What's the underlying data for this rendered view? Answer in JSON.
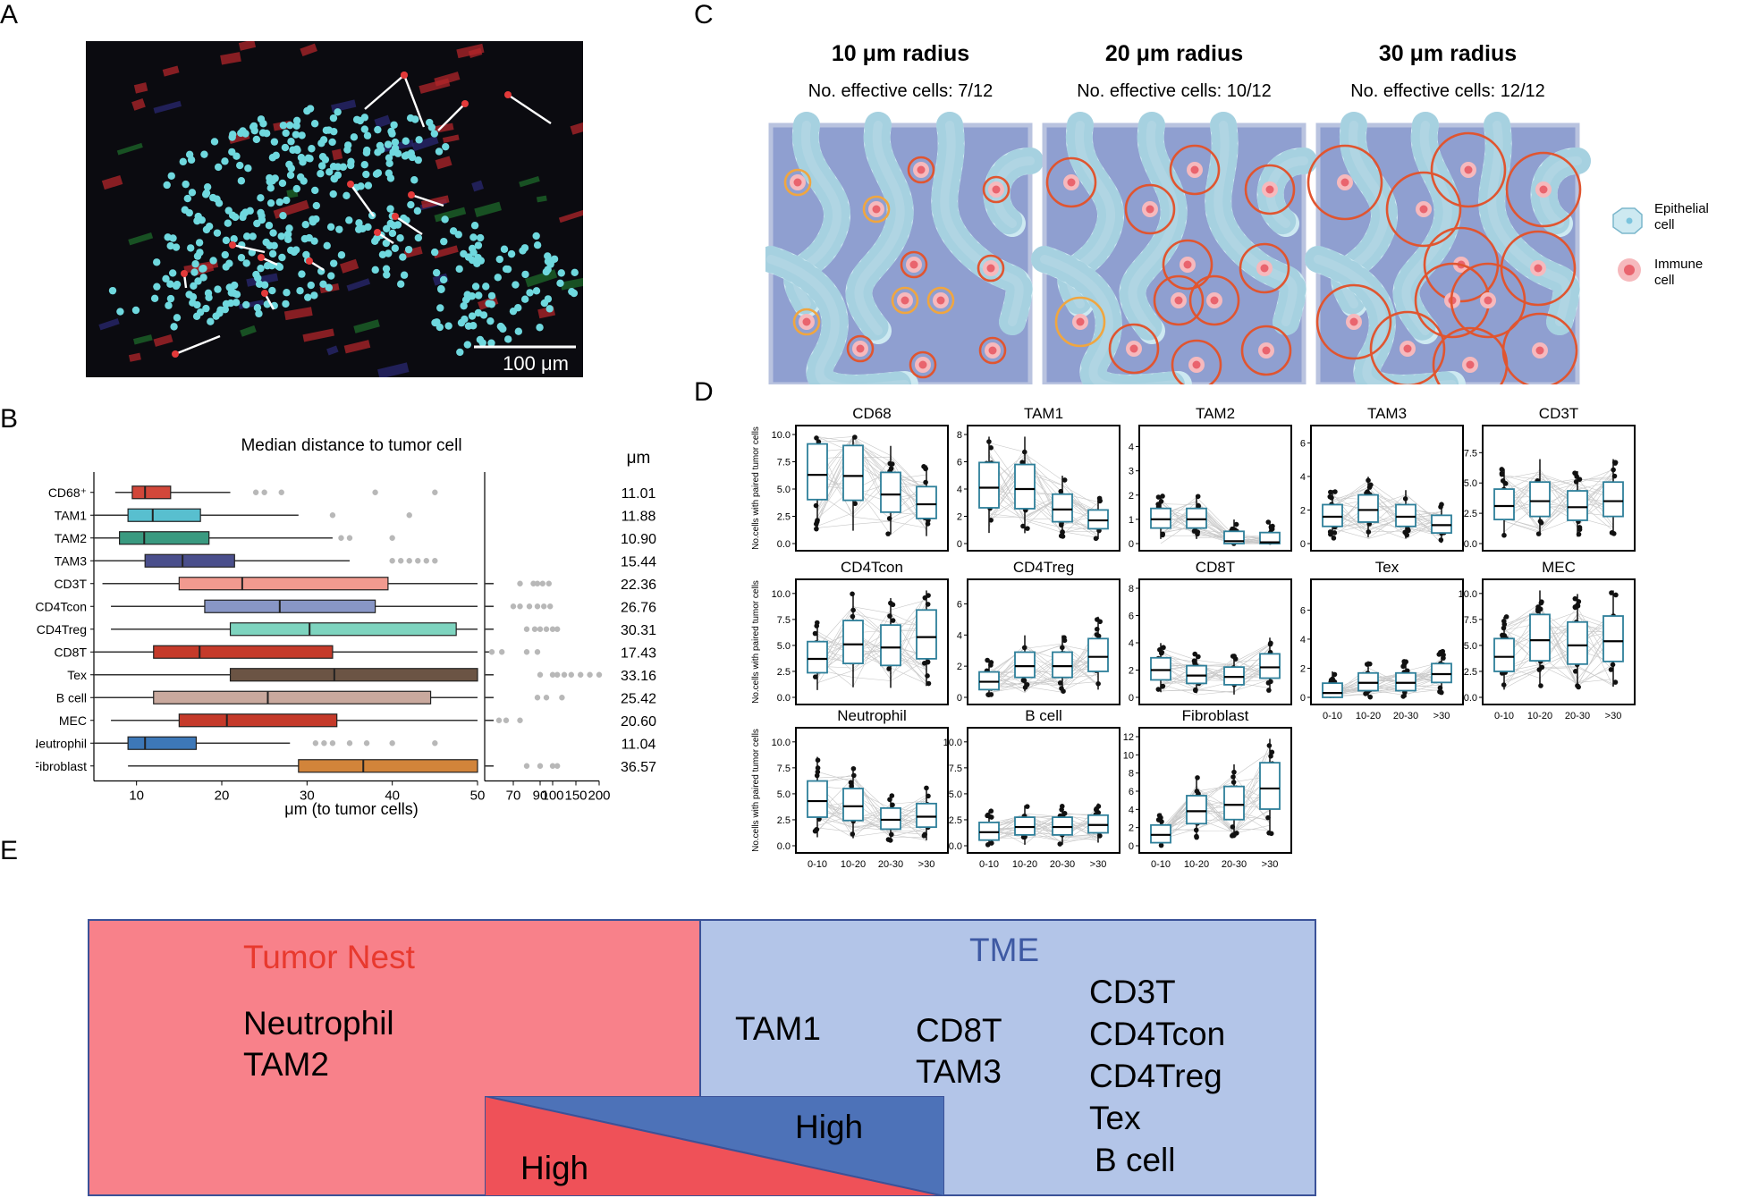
{
  "panel_labels": {
    "a": "A",
    "b": "B",
    "c": "C",
    "d": "D",
    "e": "E"
  },
  "panel_a": {
    "scale_bar_label": "100 μm"
  },
  "panel_b": {
    "chart_data": {
      "type": "box",
      "title": "Median distance to tumor cell",
      "xlabel": "μm (to tumor cells)",
      "unit_header": "μm",
      "x_ticks_main": [
        "10",
        "20",
        "30",
        "40",
        "50"
      ],
      "x_ticks_ext": [
        "70",
        "90",
        "100",
        "150",
        "200"
      ],
      "categories": [
        "CD68⁺",
        "TAM1",
        "TAM2",
        "TAM3",
        "CD3T",
        "CD4Tcon",
        "CD4Treg",
        "CD8T",
        "Tex",
        "B cell",
        "MEC",
        "Neutrophil",
        "Fibroblast"
      ],
      "medians": [
        "11.01",
        "11.88",
        "10.90",
        "15.44",
        "22.36",
        "26.76",
        "30.31",
        "17.43",
        "33.16",
        "25.42",
        "20.60",
        "11.04",
        "36.57"
      ],
      "colors": [
        "#d2473a",
        "#58bfcf",
        "#3a9a80",
        "#4a4f8c",
        "#f19a8f",
        "#8896c6",
        "#7ed4bf",
        "#c53a2a",
        "#6b5444",
        "#c9a99e",
        "#c53a2a",
        "#3d78b8",
        "#d2843a"
      ],
      "boxes": [
        {
          "wmin": 7.5,
          "q1": 9.5,
          "median": 11.0,
          "q3": 14.0,
          "wmax": 21,
          "outliers": [
            24,
            25,
            27,
            38,
            45
          ]
        },
        {
          "wmin": 5,
          "q1": 9,
          "median": 11.9,
          "q3": 17.5,
          "wmax": 29,
          "outliers": [
            33,
            42
          ]
        },
        {
          "wmin": 5,
          "q1": 8,
          "median": 10.9,
          "q3": 18.5,
          "wmax": 33,
          "outliers": [
            34,
            35,
            40
          ]
        },
        {
          "wmin": 5,
          "q1": 11,
          "median": 15.4,
          "q3": 21.5,
          "wmax": 35,
          "outliers": [
            40,
            41,
            42,
            43,
            44,
            45
          ]
        },
        {
          "wmin": 6,
          "q1": 15,
          "median": 22.4,
          "q3": 39.5,
          "wmax": 50,
          "outliers": [
            75,
            85,
            88,
            92,
            97
          ]
        },
        {
          "wmin": 7,
          "q1": 18,
          "median": 26.8,
          "q3": 38,
          "wmax": 50,
          "outliers": [
            70,
            75,
            82,
            88,
            93,
            98
          ]
        },
        {
          "wmin": 7,
          "q1": 21,
          "median": 30.3,
          "q3": 47.5,
          "wmax": 50,
          "outliers": [
            80,
            86,
            90,
            95,
            100,
            110
          ]
        },
        {
          "wmin": 5,
          "q1": 12,
          "median": 17.4,
          "q3": 33,
          "wmax": 50,
          "outliers": [
            55,
            62,
            80,
            88
          ]
        },
        {
          "wmin": 5,
          "q1": 21,
          "median": 33.2,
          "q3": 50,
          "wmax": 50,
          "outliers": [
            90,
            100,
            110,
            125,
            140,
            160,
            180,
            200
          ]
        },
        {
          "wmin": 5,
          "q1": 12,
          "median": 25.4,
          "q3": 44.5,
          "wmax": 50,
          "outliers": [
            88,
            95,
            120
          ]
        },
        {
          "wmin": 7,
          "q1": 15,
          "median": 20.6,
          "q3": 33.5,
          "wmax": 50,
          "outliers": [
            60,
            65,
            75
          ]
        },
        {
          "wmin": 5,
          "q1": 9,
          "median": 11.0,
          "q3": 17,
          "wmax": 28,
          "outliers": [
            31,
            32,
            33,
            35,
            37,
            40,
            45
          ]
        },
        {
          "wmin": 9,
          "q1": 29,
          "median": 36.6,
          "q3": 50,
          "wmax": 50,
          "outliers": [
            80,
            90,
            100,
            110
          ]
        }
      ]
    }
  },
  "panel_c": {
    "legend": {
      "epithelial": "Epithelial cell",
      "immune": "Immune cell"
    },
    "panels": [
      {
        "title": "10 μm radius",
        "subtitle": "No. effective cells: 7/12"
      },
      {
        "title": "20 μm radius",
        "subtitle": "No. effective cells: 10/12"
      },
      {
        "title": "30 μm radius",
        "subtitle": "No. effective cells: 12/12"
      }
    ]
  },
  "panel_d": {
    "chart_data": {
      "type": "box",
      "ylabel": "No.cells with paired tumor cells",
      "categories": [
        "0-10",
        "10-20",
        "20-30",
        ">30"
      ],
      "panels": [
        {
          "title": "CD68",
          "yticks": [
            "0.0",
            "2.5",
            "5.0",
            "7.5",
            "10.0"
          ],
          "ymax": 10,
          "medians": [
            6.3,
            6.2,
            4.5,
            3.6
          ]
        },
        {
          "title": "TAM1",
          "yticks": [
            "0",
            "2",
            "4",
            "6",
            "8"
          ],
          "ymax": 8,
          "medians": [
            4.1,
            4.0,
            2.5,
            1.7
          ]
        },
        {
          "title": "TAM2",
          "yticks": [
            "0",
            "1",
            "2",
            "3",
            "4"
          ],
          "ymax": 4.5,
          "medians": [
            1.0,
            1.0,
            0.1,
            0.05
          ]
        },
        {
          "title": "TAM3",
          "yticks": [
            "0",
            "2",
            "4",
            "6"
          ],
          "ymax": 6.5,
          "medians": [
            1.6,
            2.0,
            1.6,
            1.1
          ]
        },
        {
          "title": "CD3T",
          "yticks": [
            "0.0",
            "2.5",
            "5.0",
            "7.5"
          ],
          "ymax": 9,
          "medians": [
            3.1,
            3.5,
            3.0,
            3.5
          ]
        },
        {
          "title": "CD4Tcon",
          "yticks": [
            "0.0",
            "2.5",
            "5.0",
            "7.5",
            "10.0"
          ],
          "ymax": 10.5,
          "medians": [
            3.7,
            5.1,
            4.8,
            5.8
          ]
        },
        {
          "title": "CD4Treg",
          "yticks": [
            "0",
            "2",
            "4",
            "6"
          ],
          "ymax": 7,
          "medians": [
            1.0,
            2.0,
            2.0,
            2.6
          ]
        },
        {
          "title": "CD8T",
          "yticks": [
            "0",
            "2",
            "4",
            "6",
            "8"
          ],
          "ymax": 8,
          "medians": [
            2.0,
            1.6,
            1.5,
            2.2
          ]
        },
        {
          "title": "Tex",
          "yticks": [
            "0",
            "2",
            "4",
            "6"
          ],
          "ymax": 7.5,
          "medians": [
            0.3,
            1.0,
            1.0,
            1.6
          ]
        },
        {
          "title": "MEC",
          "yticks": [
            "0.0",
            "2.5",
            "5.0",
            "7.5",
            "10.0"
          ],
          "ymax": 10.5,
          "medians": [
            3.9,
            5.5,
            5.0,
            5.4
          ]
        },
        {
          "title": "Neutrophil",
          "yticks": [
            "0.0",
            "2.5",
            "5.0",
            "7.5",
            "10.0"
          ],
          "ymax": 10.5,
          "medians": [
            4.3,
            3.8,
            2.5,
            2.8
          ]
        },
        {
          "title": "B cell",
          "yticks": [
            "0.0",
            "2.5",
            "5.0",
            "7.5",
            "10.0"
          ],
          "ymax": 10.5,
          "medians": [
            1.3,
            1.8,
            1.8,
            2.0
          ]
        },
        {
          "title": "Fibroblast",
          "yticks": [
            "0",
            "2",
            "4",
            "6",
            "8",
            "10",
            "12"
          ],
          "ymax": 12,
          "medians": [
            1.2,
            3.8,
            4.5,
            6.3
          ]
        }
      ]
    }
  },
  "panel_e": {
    "tumor_nest_title": "Tumor Nest",
    "tumor_nest_items": [
      "Neutrophil",
      "TAM2"
    ],
    "tme_title": "TME",
    "tme_col1": [
      "TAM1"
    ],
    "tme_col2": [
      "CD8T",
      "TAM3"
    ],
    "tme_col3": [
      "CD3T",
      "CD4Tcon",
      "CD4Treg",
      "Tex",
      "B cell"
    ],
    "high_left": "High",
    "high_right": "High",
    "colors": {
      "tumor_nest": "#f8818a",
      "tme": "#b3c5e8",
      "blue_wedge": "#4d72b8",
      "red_wedge": "#ef5158",
      "tumor_title": "#e8392e",
      "tme_title": "#3e59a3"
    }
  }
}
